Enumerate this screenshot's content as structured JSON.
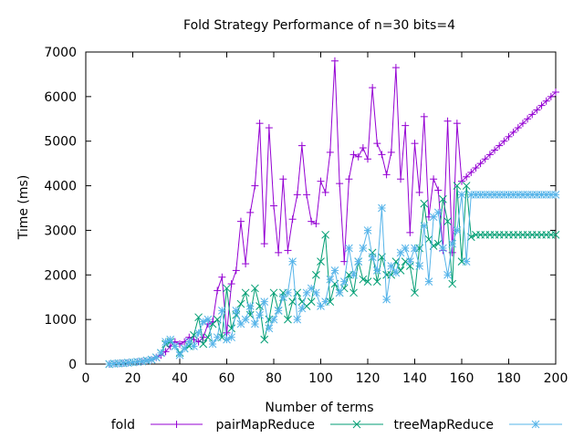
{
  "chart_data": {
    "type": "line",
    "title": "Fold Strategy Performance of n=30 bits=4",
    "xlabel": "Number of terms",
    "ylabel": "Time (ms)",
    "xlim": [
      0,
      200
    ],
    "ylim": [
      0,
      7000
    ],
    "xticks": [
      0,
      20,
      40,
      60,
      80,
      100,
      120,
      140,
      160,
      180,
      200
    ],
    "yticks": [
      0,
      1000,
      2000,
      3000,
      4000,
      5000,
      6000,
      7000
    ],
    "grid": false,
    "legend_position": "bottom",
    "x": [
      10,
      12,
      14,
      16,
      18,
      20,
      22,
      24,
      26,
      28,
      30,
      32,
      34,
      36,
      38,
      40,
      42,
      44,
      46,
      48,
      50,
      52,
      54,
      56,
      58,
      60,
      62,
      64,
      66,
      68,
      70,
      72,
      74,
      76,
      78,
      80,
      82,
      84,
      86,
      88,
      90,
      92,
      94,
      96,
      98,
      100,
      102,
      104,
      106,
      108,
      110,
      112,
      114,
      116,
      118,
      120,
      122,
      124,
      126,
      128,
      130,
      132,
      134,
      136,
      138,
      140,
      142,
      144,
      146,
      148,
      150,
      152,
      154,
      156,
      158,
      160,
      162,
      164,
      166,
      168,
      170,
      172,
      174,
      176,
      178,
      180,
      182,
      184,
      186,
      188,
      190,
      192,
      194,
      196,
      198,
      200
    ],
    "series": [
      {
        "name": "fold",
        "color": "#9400d3",
        "marker": "plus",
        "values": [
          0,
          10,
          15,
          20,
          30,
          40,
          50,
          60,
          80,
          100,
          150,
          200,
          280,
          400,
          500,
          450,
          500,
          600,
          550,
          500,
          600,
          900,
          950,
          1650,
          1950,
          700,
          1800,
          2100,
          3200,
          2250,
          3400,
          4000,
          5400,
          2700,
          5300,
          3550,
          2500,
          4150,
          2550,
          3250,
          3800,
          4900,
          3800,
          3200,
          3150,
          4100,
          3850,
          4750,
          6800,
          4050,
          2300,
          4150,
          4700,
          4650,
          4850,
          4600,
          6200,
          4950,
          4700,
          4250,
          4750,
          6650,
          4150,
          5350,
          2950,
          4950,
          3850,
          5550,
          3300,
          4150,
          3900,
          2550,
          5450,
          2500,
          5400,
          4100,
          4200,
          4300,
          4400,
          4500,
          4600,
          4700,
          4800,
          4900,
          5000,
          5100,
          5200,
          5300,
          5400,
          5500,
          5600,
          5700,
          5800,
          5900,
          6000,
          6100
        ],
        "note_values_after_x_198_unused": ""
      },
      {
        "name": "pairMapReduce",
        "color": "#009e73",
        "marker": "cross",
        "values": [
          0,
          10,
          15,
          20,
          30,
          40,
          50,
          60,
          80,
          100,
          150,
          250,
          450,
          500,
          400,
          250,
          350,
          400,
          650,
          1050,
          450,
          600,
          900,
          1000,
          600,
          1700,
          800,
          1100,
          1350,
          1600,
          1100,
          1700,
          1300,
          550,
          1000,
          1600,
          1200,
          1600,
          1000,
          1400,
          1600,
          1400,
          1300,
          1400,
          2000,
          2300,
          2900,
          1400,
          1800,
          1600,
          1700,
          2000,
          1600,
          2300,
          1900,
          1850,
          2500,
          1850,
          2400,
          2000,
          2000,
          2300,
          2100,
          2300,
          2200,
          1600,
          2600,
          3600,
          2800,
          2650,
          2700,
          3700,
          3200,
          1800,
          4000,
          2300,
          4000,
          2850,
          2900,
          2900,
          2900,
          2900,
          2900,
          2900,
          2900,
          2900,
          2900,
          2900,
          2900,
          2900,
          2900,
          2900,
          2900,
          2900,
          2900,
          2900
        ]
      },
      {
        "name": "treeMapReduce",
        "color": "#56b4e9",
        "marker": "star",
        "values": [
          0,
          10,
          15,
          20,
          30,
          40,
          50,
          60,
          80,
          100,
          150,
          250,
          500,
          550,
          400,
          200,
          350,
          500,
          400,
          700,
          950,
          1000,
          450,
          600,
          1200,
          550,
          600,
          1200,
          900,
          1000,
          1300,
          900,
          1100,
          1400,
          800,
          1000,
          1200,
          1500,
          1600,
          2300,
          1000,
          1250,
          1600,
          1700,
          1600,
          1300,
          1400,
          1900,
          2100,
          1600,
          1850,
          2600,
          2000,
          2300,
          2600,
          3000,
          2400,
          2100,
          3500,
          1450,
          2200,
          2050,
          2500,
          2600,
          2300,
          2600,
          2200,
          3100,
          1850,
          3300,
          3400,
          2600,
          2000,
          2700,
          3000,
          3800,
          2300,
          3800,
          3800,
          3800,
          3800,
          3800,
          3800,
          3800,
          3800,
          3800,
          3800,
          3800,
          3800,
          3800,
          3800,
          3800,
          3800,
          3800,
          3800,
          3800
        ]
      }
    ]
  }
}
